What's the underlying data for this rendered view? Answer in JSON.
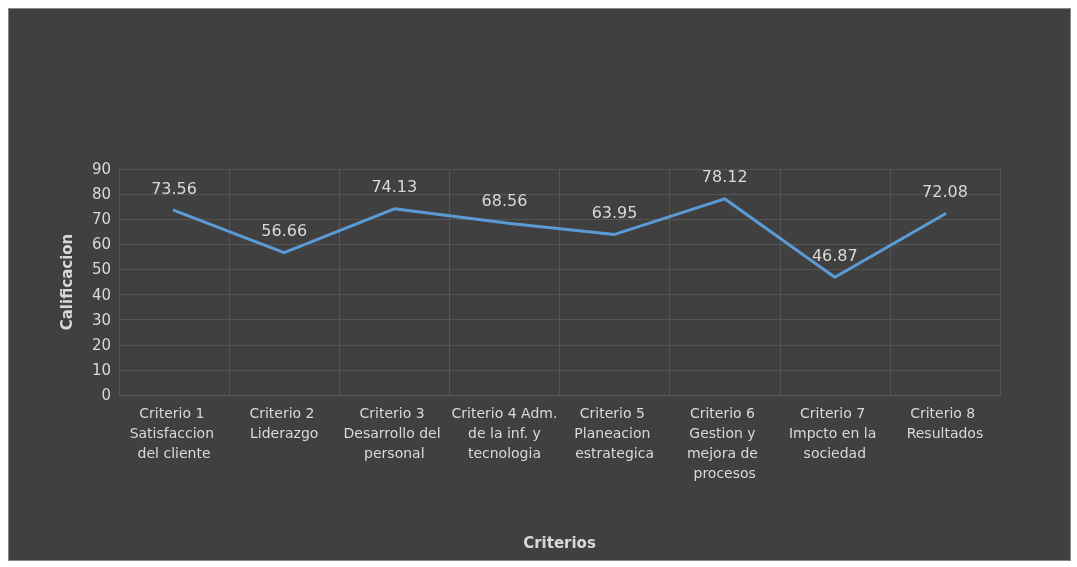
{
  "chart_data": {
    "type": "line",
    "xlabel": "Criterios",
    "ylabel": "Calificacion",
    "categories": [
      "Criterio 1 Satisfaccion del cliente",
      "Criterio 2 Liderazgo",
      "Criterio 3 Desarrollo del personal",
      "Criterio 4 Adm. de la inf. y tecnologia",
      "Criterio 5 Planeacion estrategica",
      "Criterio 6 Gestion y mejora de procesos",
      "Criterio 7 Impcto en la sociedad",
      "Criterio 8 Resultados"
    ],
    "series": [
      {
        "color": "#5b9bd5",
        "values": [
          73.56,
          56.66,
          74.13,
          68.56,
          63.95,
          78.12,
          46.87,
          72.08
        ]
      }
    ],
    "ylim": [
      0,
      90
    ],
    "yticks": [
      0,
      10,
      20,
      30,
      40,
      50,
      60,
      70,
      80,
      90
    ],
    "grid": true,
    "data_labels": true,
    "marker": "none",
    "line_style": "solid"
  }
}
